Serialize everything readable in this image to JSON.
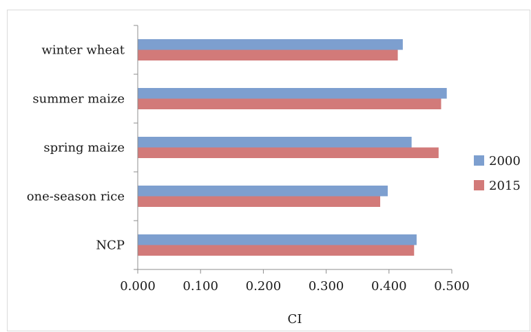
{
  "chart_data": {
    "type": "bar",
    "orientation": "horizontal",
    "categories": [
      "winter wheat",
      "summer maize",
      "spring maize",
      "one-season rice",
      "NCP"
    ],
    "series": [
      {
        "name": "2000",
        "color": "#7d9fcf",
        "values": [
          0.422,
          0.492,
          0.436,
          0.398,
          0.444
        ]
      },
      {
        "name": "2015",
        "color": "#d27a79",
        "values": [
          0.414,
          0.483,
          0.479,
          0.386,
          0.44
        ]
      }
    ],
    "xlabel": "CI",
    "ylabel": "",
    "xlim": [
      0,
      0.5
    ],
    "xticks": [
      "0.000",
      "0.100",
      "0.200",
      "0.300",
      "0.400",
      "0.500"
    ],
    "grid": false,
    "legend_position": "right"
  }
}
